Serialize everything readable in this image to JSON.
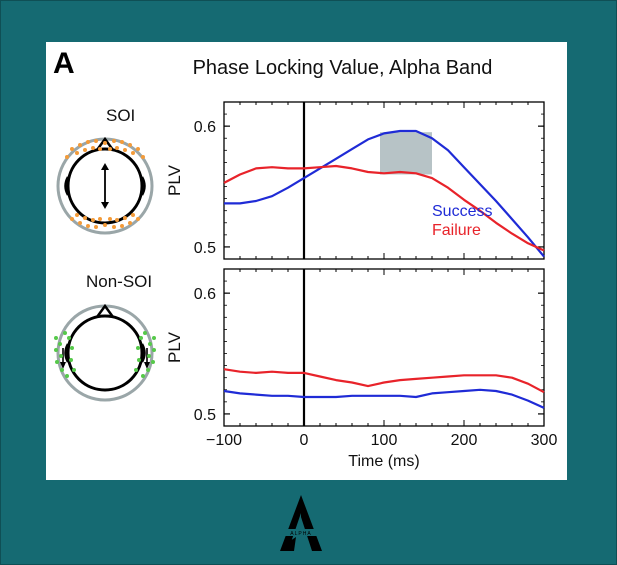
{
  "panel": {
    "letter": "A",
    "title": "Phase Locking Value, Alpha Band",
    "head_labels": [
      "SOI",
      "Non-SOI"
    ]
  },
  "logo_text": "ALPHA",
  "colors": {
    "background": "#156a72",
    "success": "#1f2bd6",
    "failure": "#e8232a",
    "shade": "#b7c3c6",
    "soi_dots": "#f39b3a",
    "non_soi_dots": "#56c94a"
  },
  "chart_data": [
    {
      "type": "line",
      "xlim": [
        -100,
        300
      ],
      "ylim": [
        0.49,
        0.62
      ],
      "yticks": [
        0.5,
        0.6
      ],
      "ylabel": "PLV",
      "xlabel": "",
      "shaded_region": {
        "x": [
          95,
          160
        ],
        "y": [
          0.56,
          0.595
        ]
      },
      "legend": {
        "placement": "right",
        "entries": [
          "Success",
          "Failure"
        ]
      },
      "series": [
        {
          "name": "Success",
          "x": [
            -100,
            -80,
            -60,
            -40,
            -20,
            0,
            20,
            40,
            60,
            80,
            100,
            120,
            140,
            160,
            180,
            200,
            220,
            240,
            260,
            280,
            300
          ],
          "y": [
            0.536,
            0.536,
            0.538,
            0.542,
            0.549,
            0.557,
            0.565,
            0.573,
            0.581,
            0.589,
            0.594,
            0.596,
            0.596,
            0.59,
            0.58,
            0.566,
            0.552,
            0.538,
            0.523,
            0.508,
            0.492
          ]
        },
        {
          "name": "Failure",
          "x": [
            -100,
            -80,
            -60,
            -40,
            -20,
            0,
            20,
            40,
            60,
            80,
            100,
            120,
            140,
            160,
            180,
            200,
            220,
            240,
            260,
            280,
            300
          ],
          "y": [
            0.553,
            0.56,
            0.565,
            0.566,
            0.565,
            0.565,
            0.566,
            0.567,
            0.565,
            0.562,
            0.561,
            0.562,
            0.561,
            0.557,
            0.549,
            0.539,
            0.53,
            0.52,
            0.511,
            0.503,
            0.497
          ]
        }
      ]
    },
    {
      "type": "line",
      "xlim": [
        -100,
        300
      ],
      "ylim": [
        0.49,
        0.62
      ],
      "yticks": [
        0.5,
        0.6
      ],
      "xticks": [
        -100,
        0,
        100,
        200,
        300
      ],
      "xtick_labels": [
        "−100",
        "0",
        "100",
        "200",
        "300"
      ],
      "ylabel": "PLV",
      "xlabel": "Time (ms)",
      "series": [
        {
          "name": "Success",
          "x": [
            -100,
            -80,
            -60,
            -40,
            -20,
            0,
            20,
            40,
            60,
            80,
            100,
            120,
            140,
            160,
            180,
            200,
            220,
            240,
            260,
            280,
            300
          ],
          "y": [
            0.519,
            0.517,
            0.516,
            0.515,
            0.515,
            0.514,
            0.514,
            0.514,
            0.515,
            0.515,
            0.515,
            0.515,
            0.514,
            0.517,
            0.518,
            0.519,
            0.52,
            0.519,
            0.516,
            0.511,
            0.505
          ]
        },
        {
          "name": "Failure",
          "x": [
            -100,
            -80,
            -60,
            -40,
            -20,
            0,
            20,
            40,
            60,
            80,
            100,
            120,
            140,
            160,
            180,
            200,
            220,
            240,
            260,
            280,
            300
          ],
          "y": [
            0.537,
            0.535,
            0.534,
            0.535,
            0.534,
            0.534,
            0.531,
            0.528,
            0.526,
            0.523,
            0.526,
            0.528,
            0.529,
            0.53,
            0.531,
            0.532,
            0.532,
            0.532,
            0.53,
            0.525,
            0.518
          ]
        }
      ]
    }
  ]
}
